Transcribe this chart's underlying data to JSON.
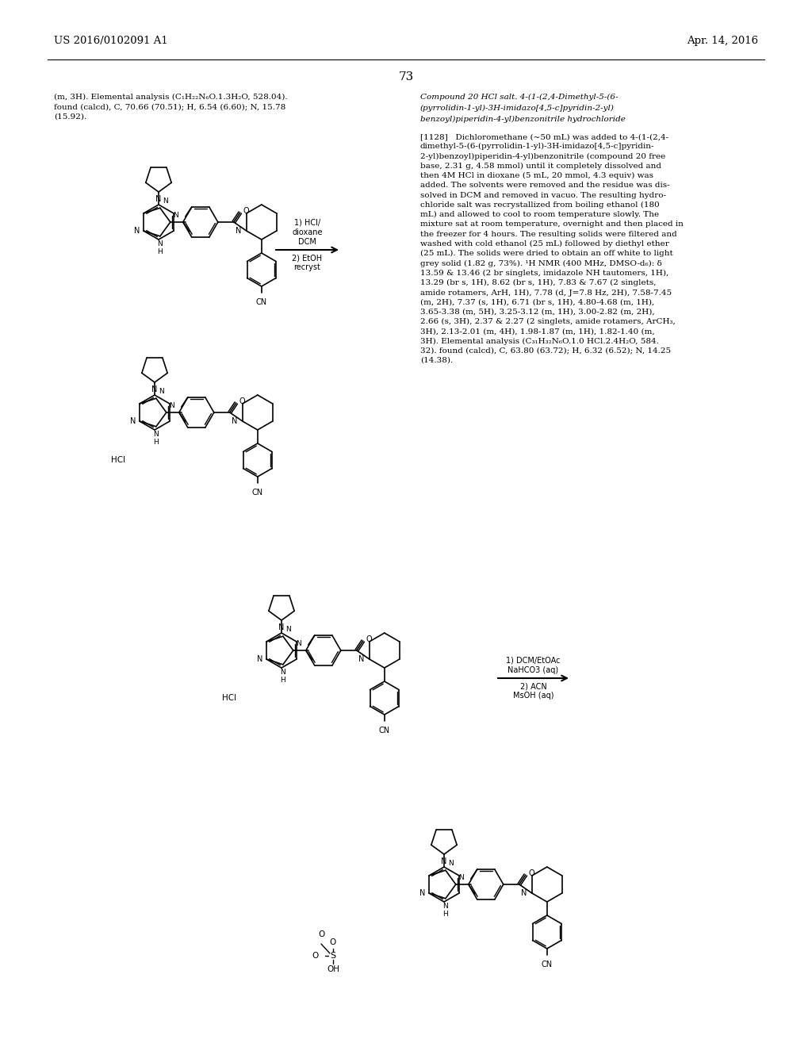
{
  "page_number": "73",
  "header_left": "US 2016/0102091 A1",
  "header_right": "Apr. 14, 2016",
  "background_color": "#ffffff",
  "text_color": "#000000",
  "left_text_1": "(m, 3H). Elemental analysis (C",
  "left_text_sub1": "31",
  "left_text_2": "H",
  "left_text_sub2": "32",
  "left_text_3": "N",
  "left_text_sub3": "6",
  "left_text_4": "O.1.3H",
  "left_text_sub4": "2",
  "left_text_5": "O, 528.04).\nfound (calcd), C, 70.66 (70.51); H, 6.54 (6.60); N, 15.78\n(15.92).",
  "right_title_line1": "Compound 20 HCl salt. 4-(1-(2,4-Dimethyl-5-(6-",
  "right_title_line2": "(pyrrolidin-1-yl)-3H-imidazo[4,5-c]pyridin-2-yl)",
  "right_title_line3": "benzoyl)piperidin-4-yl)benzonitrile hydrochloride",
  "para_1128": "[1128]   Dichloromethane (~50 mL) was added to 4-(1-(2,4-\ndimethyl-5-(6-(pyrrolidin-1-yl)-3H-imidazo[4,5-c]pyridin-\n2-yl)benzoyl)piperidin-4-yl)benzonitrile (compound 20 free\nbase, 2.31 g, 4.58 mmol) until it completely dissolved and\nthen 4M HCl in dioxane (5 mL, 20 mmol, 4.3 equiv) was\nadded. The solvents were removed and the residue was dis-\nsolved in DCM and removed in vacuo. The resulting hydro-\nchloride salt was recrystallized from boiling ethanol (180\nmL) and allowed to cool to room temperature slowly. The\nmixture sat at room temperature, overnight and then placed in\nthe freezer for 4 hours. The resulting solids were filtered and\nwashed with cold ethanol (25 mL) followed by diethyl ether\n(25 mL). The solids were dried to obtain an off white to light\ngrey solid (1.82 g, 73%). ¹H NMR (400 MHz, DMSO-d₆): δ\n13.59 & 13.46 (2 br singlets, imidazole NH tautomers, 1H),\n13.29 (br s, 1H), 8.62 (br s, 1H), 7.83 & 7.67 (2 singlets,\namide rotamers, ArH, 1H), 7.78 (d, J=7.8 Hz, 2H), 7.58-7.45\n(m, 2H), 7.37 (s, 1H), 6.71 (br s, 1H), 4.80-4.68 (m, 1H),\n3.65-3.38 (m, 5H), 3.25-3.12 (m, 1H), 3.00-2.82 (m, 2H),\n2.66 (s, 3H), 2.37 & 2.27 (2 singlets, amide rotamers, ArCH₃,\n3H), 2.13-2.01 (m, 4H), 1.98-1.87 (m, 1H), 1.82-1.40 (m,\n3H). Elemental analysis (C₃₁H₃₂N₆O.1.0 HCl.2.4H₂O, 584.\n32). found (calcd), C, 63.80 (63.72); H, 6.32 (6.52); N, 14.25\n(14.38).",
  "arrow1_top": "1) HCl/\ndioxane\nDCM",
  "arrow1_bot": "2) EtOH\nrecryst",
  "arrow2_top": "1) DCM/EtOAc\nNaHCO3 (aq)",
  "arrow2_bot": "2) ACN\nMsOH (aq)"
}
